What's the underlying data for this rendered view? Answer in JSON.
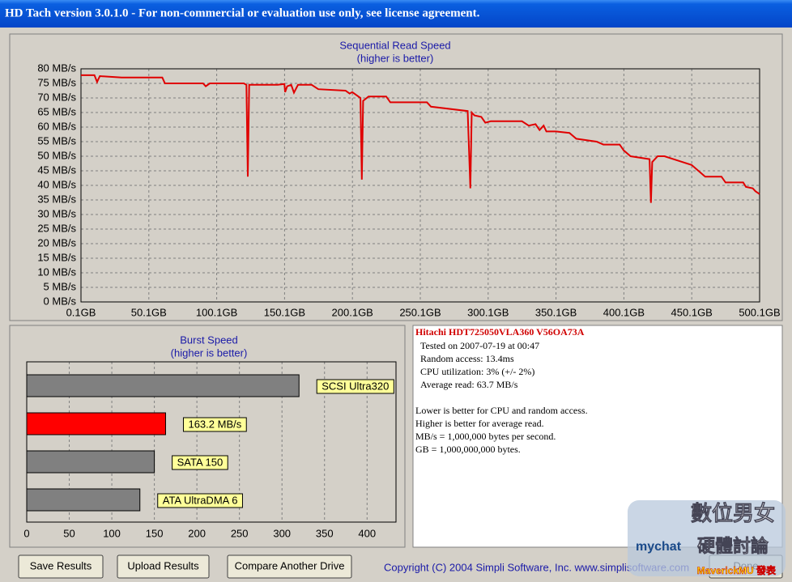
{
  "window": {
    "title": "HD Tach version 3.0.1.0  - For non-commercial or evaluation use only, see license agreement."
  },
  "read_chart": {
    "title": "Sequential Read Speed",
    "subtitle": "(higher is better)",
    "xlim": [
      0.1,
      500.1
    ],
    "ylim": [
      0,
      80
    ],
    "xticks": [
      {
        "value": 0.1,
        "label": "0.1GB"
      },
      {
        "value": 50.1,
        "label": "50.1GB"
      },
      {
        "value": 100.1,
        "label": "100.1GB"
      },
      {
        "value": 150.1,
        "label": "150.1GB"
      },
      {
        "value": 200.1,
        "label": "200.1GB"
      },
      {
        "value": 250.1,
        "label": "250.1GB"
      },
      {
        "value": 300.1,
        "label": "300.1GB"
      },
      {
        "value": 350.1,
        "label": "350.1GB"
      },
      {
        "value": 400.1,
        "label": "400.1GB"
      },
      {
        "value": 450.1,
        "label": "450.1GB"
      },
      {
        "value": 500.1,
        "label": "500.1GB"
      }
    ],
    "yticks": [
      {
        "value": 0,
        "label": "0 MB/s"
      },
      {
        "value": 5,
        "label": "5 MB/s"
      },
      {
        "value": 10,
        "label": "10 MB/s"
      },
      {
        "value": 15,
        "label": "15 MB/s"
      },
      {
        "value": 20,
        "label": "20 MB/s"
      },
      {
        "value": 25,
        "label": "25 MB/s"
      },
      {
        "value": 30,
        "label": "30 MB/s"
      },
      {
        "value": 35,
        "label": "35 MB/s"
      },
      {
        "value": 40,
        "label": "40 MB/s"
      },
      {
        "value": 45,
        "label": "45 MB/s"
      },
      {
        "value": 50,
        "label": "50 MB/s"
      },
      {
        "value": 55,
        "label": "55 MB/s"
      },
      {
        "value": 60,
        "label": "60 MB/s"
      },
      {
        "value": 65,
        "label": "65 MB/s"
      },
      {
        "value": 70,
        "label": "70 MB/s"
      },
      {
        "value": 75,
        "label": "75 MB/s"
      },
      {
        "value": 80,
        "label": "80 MB/s"
      }
    ],
    "grid": true,
    "color": "#e00000",
    "x": [
      0.1,
      10,
      12,
      14,
      30,
      60,
      62,
      90,
      92,
      95,
      120,
      122,
      123,
      124,
      145,
      150,
      150.5,
      152,
      155,
      157,
      160,
      170,
      175,
      195,
      198,
      200,
      206,
      207,
      208,
      212,
      225,
      228,
      255,
      258,
      285,
      287,
      288,
      290,
      295,
      298,
      302,
      325,
      330,
      335,
      338,
      341,
      343,
      350,
      360,
      365,
      380,
      385,
      397,
      400,
      405,
      419,
      420,
      421,
      425,
      430,
      440,
      450,
      455,
      460,
      472,
      475,
      488,
      490,
      495,
      497,
      500.1
    ],
    "values": [
      77.8,
      77.8,
      75.5,
      77.5,
      77,
      77,
      75,
      75,
      74,
      75,
      75,
      74.5,
      43,
      74.5,
      74.5,
      74.8,
      72,
      74,
      74.5,
      71.8,
      74.5,
      74.5,
      73,
      72.5,
      71.5,
      72,
      70,
      42,
      69,
      70.5,
      70.5,
      68.5,
      68.5,
      67,
      65.5,
      39,
      65,
      64,
      63.5,
      61.5,
      62,
      62,
      60.5,
      61,
      59,
      60.5,
      58.5,
      58.5,
      58,
      56,
      55,
      54,
      54,
      52,
      50,
      49,
      34,
      48,
      50,
      50,
      48.5,
      47,
      45,
      43,
      43,
      41,
      41,
      39.5,
      39,
      38,
      37
    ]
  },
  "burst_chart": {
    "title": "Burst Speed",
    "subtitle": "(higher is better)",
    "xlim": [
      0,
      434
    ],
    "xticks": [
      0,
      50,
      100,
      150,
      200,
      250,
      300,
      350,
      400
    ],
    "grid": true,
    "bars": [
      {
        "label": "SCSI Ultra320",
        "value": 320,
        "color": "#808080"
      },
      {
        "value": 163.2,
        "value_label": "163.2 MB/s",
        "color": "#ff0000"
      },
      {
        "label": "SATA 150",
        "value": 150,
        "color": "#808080"
      },
      {
        "label": "ATA UltraDMA 6",
        "value": 133,
        "color": "#808080"
      }
    ]
  },
  "info": {
    "drive": "Hitachi HDT725050VLA360 V56OA73A",
    "results": [
      "Tested on 2007-07-19 at 00:47",
      "Random access: 13.4ms",
      "CPU utilization: 3% (+/- 2%)",
      "Average read: 63.7 MB/s"
    ],
    "notes": [
      "Lower is better for CPU and random access.",
      "Higher is better for average read.",
      "MB/s = 1,000,000 bytes per second.",
      "GB = 1,000,000,000 bytes."
    ]
  },
  "buttons": [
    "Save Results",
    "Upload Results",
    "Compare Another Drive",
    "Done"
  ],
  "copyright": "Copyright (C) 2004 Simpli Software, Inc. www.simplisoftware.com",
  "watermark": {
    "site": "mychat",
    "title": "數位男女",
    "subtitle": "硬體討論",
    "author": "MaverickMU 發表"
  }
}
